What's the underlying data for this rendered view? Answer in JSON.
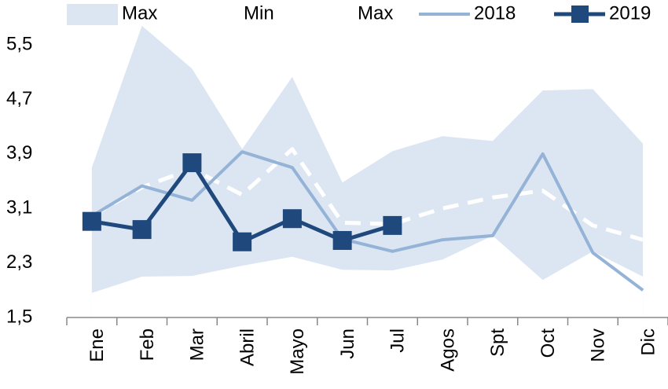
{
  "chart_data": {
    "type": "line",
    "categories": [
      "Ene",
      "Feb",
      "Mar",
      "Abril",
      "Mayo",
      "Jun",
      "Jul",
      "Agos",
      "Spt",
      "Oct",
      "Nov",
      "Dic"
    ],
    "series": [
      {
        "name": "Max",
        "color": "#dce6f2",
        "style": "area",
        "values": [
          3.7,
          5.78,
          5.15,
          3.97,
          5.03,
          3.48,
          3.94,
          4.16,
          4.09,
          4.83,
          4.85,
          4.05
        ]
      },
      {
        "name": "Min",
        "color": "#ffffff",
        "style": "area",
        "values": [
          1.86,
          2.1,
          2.11,
          2.26,
          2.39,
          2.2,
          2.19,
          2.35,
          2.7,
          2.05,
          2.47,
          2.1
        ]
      },
      {
        "name": "Max",
        "color": "#ffffff",
        "style": "dashed",
        "values": [
          2.99,
          3.41,
          3.68,
          3.3,
          3.97,
          2.89,
          2.87,
          3.1,
          3.26,
          3.36,
          2.85,
          2.64
        ]
      },
      {
        "name": "2018",
        "color": "#95b3d7",
        "style": "line",
        "values": [
          2.99,
          3.43,
          3.22,
          3.93,
          3.7,
          2.65,
          2.47,
          2.64,
          2.7,
          3.9,
          2.45,
          1.9
        ]
      },
      {
        "name": "2019",
        "color": "#1f497d",
        "style": "marker",
        "values": [
          2.91,
          2.79,
          3.77,
          2.61,
          2.95,
          2.63,
          2.85,
          null,
          null,
          null,
          null,
          null
        ]
      }
    ],
    "ylim": [
      1.5,
      5.8
    ],
    "yticks": [
      {
        "value": 1.5,
        "label": "1,5"
      },
      {
        "value": 2.3,
        "label": "2,3"
      },
      {
        "value": 3.1,
        "label": "3,1"
      },
      {
        "value": 3.9,
        "label": "3,9"
      },
      {
        "value": 4.7,
        "label": "4,7"
      },
      {
        "value": 5.5,
        "label": "5,5"
      }
    ],
    "legend": "top"
  }
}
